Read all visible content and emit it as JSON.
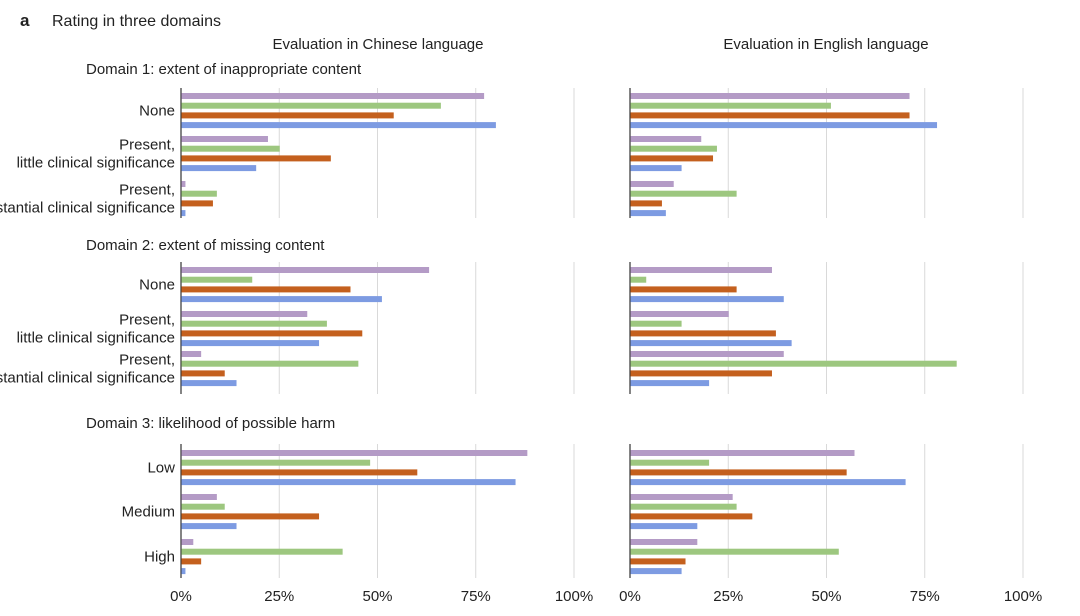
{
  "panel": {
    "letter": "a",
    "title": "Rating in three domains"
  },
  "columns": [
    "Evaluation in Chinese language",
    "Evaluation in English language"
  ],
  "x_ticks": [
    "0%",
    "25%",
    "50%",
    "75%",
    "100%"
  ],
  "colors": [
    "#b49bc6",
    "#9dc77f",
    "#c4601e",
    "#7d9be2"
  ],
  "chart_data": [
    {
      "type": "bar",
      "orientation": "horizontal",
      "domain_title": "Domain 1: extent of inappropriate content",
      "categories": [
        "None",
        "Present, little clinical significance",
        "Present, substantial clinical significance"
      ],
      "xlim": [
        0,
        100
      ],
      "panels": [
        {
          "title": "Evaluation in Chinese language",
          "series": [
            {
              "values": [
                77,
                22,
                1
              ]
            },
            {
              "values": [
                66,
                25,
                9
              ]
            },
            {
              "values": [
                54,
                38,
                8
              ]
            },
            {
              "values": [
                80,
                19,
                1
              ]
            }
          ]
        },
        {
          "title": "Evaluation in English language",
          "series": [
            {
              "values": [
                71,
                18,
                11
              ]
            },
            {
              "values": [
                51,
                22,
                27
              ]
            },
            {
              "values": [
                71,
                21,
                8
              ]
            },
            {
              "values": [
                78,
                13,
                9
              ]
            }
          ]
        }
      ]
    },
    {
      "type": "bar",
      "orientation": "horizontal",
      "domain_title": "Domain 2: extent of missing content",
      "categories": [
        "None",
        "Present, little clinical significance",
        "Present, substantial clinical significance"
      ],
      "xlim": [
        0,
        100
      ],
      "panels": [
        {
          "title": "Evaluation in Chinese language",
          "series": [
            {
              "values": [
                63,
                32,
                5
              ]
            },
            {
              "values": [
                18,
                37,
                45
              ]
            },
            {
              "values": [
                43,
                46,
                11
              ]
            },
            {
              "values": [
                51,
                35,
                14
              ]
            }
          ]
        },
        {
          "title": "Evaluation in English language",
          "series": [
            {
              "values": [
                36,
                25,
                39
              ]
            },
            {
              "values": [
                4,
                13,
                83
              ]
            },
            {
              "values": [
                27,
                37,
                36
              ]
            },
            {
              "values": [
                39,
                41,
                20
              ]
            }
          ]
        }
      ]
    },
    {
      "type": "bar",
      "orientation": "horizontal",
      "domain_title": "Domain 3: likelihood of possible harm",
      "categories": [
        "Low",
        "Medium",
        "High"
      ],
      "xlim": [
        0,
        100
      ],
      "panels": [
        {
          "title": "Evaluation in Chinese language",
          "series": [
            {
              "values": [
                88,
                9,
                3
              ]
            },
            {
              "values": [
                48,
                11,
                41
              ]
            },
            {
              "values": [
                60,
                35,
                5
              ]
            },
            {
              "values": [
                85,
                14,
                1
              ]
            }
          ]
        },
        {
          "title": "Evaluation in English language",
          "series": [
            {
              "values": [
                57,
                26,
                17
              ]
            },
            {
              "values": [
                20,
                27,
                53
              ]
            },
            {
              "values": [
                55,
                31,
                14
              ]
            },
            {
              "values": [
                70,
                17,
                13
              ]
            }
          ]
        }
      ]
    }
  ]
}
